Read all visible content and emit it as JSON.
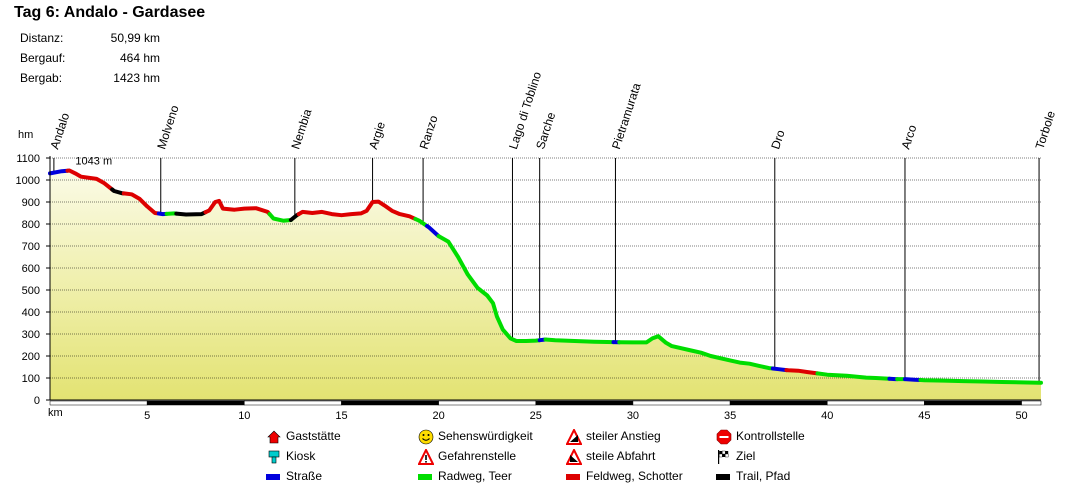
{
  "title": "Tag 6: Andalo - Gardasee",
  "stats": [
    {
      "label": "Distanz:",
      "value": "50,99 km"
    },
    {
      "label": "Bergauf:",
      "value": "464 hm"
    },
    {
      "label": "Bergab:",
      "value": "1423 hm"
    }
  ],
  "chart_data": {
    "type": "area",
    "title": "Tag 6: Andalo - Gardasee",
    "xlabel": "km",
    "ylabel": "hm",
    "xlim": [
      0,
      51
    ],
    "ylim": [
      0,
      1100
    ],
    "x_ticks": [
      0,
      5,
      10,
      15,
      20,
      25,
      30,
      35,
      40,
      45,
      50
    ],
    "y_ticks": [
      0,
      100,
      200,
      300,
      400,
      500,
      600,
      700,
      800,
      900,
      1000,
      1100
    ],
    "max_label": "1043 m",
    "max_point": {
      "km": 1.0,
      "hm": 1043
    },
    "colors": {
      "fill_top": "#fbfbe6",
      "fill_bottom": "#e3e372",
      "grid": "#000000",
      "road": "#0000dd",
      "cycle": "#00dd00",
      "field": "#dd0000",
      "trail": "#000000",
      "max": "#dd0000"
    },
    "waypoints": [
      {
        "name": "Andalo",
        "km": 0.2
      },
      {
        "name": "Molveno",
        "km": 5.7
      },
      {
        "name": "Nembia",
        "km": 12.6
      },
      {
        "name": "Argie",
        "km": 16.6
      },
      {
        "name": "Ranzo",
        "km": 19.2
      },
      {
        "name": "Lago di Toblino",
        "km": 23.8
      },
      {
        "name": "Sarche",
        "km": 25.2
      },
      {
        "name": "Pietramurata",
        "km": 29.1
      },
      {
        "name": "Dro",
        "km": 37.3
      },
      {
        "name": "Arco",
        "km": 44.0
      },
      {
        "name": "Torbole",
        "km": 50.9
      }
    ],
    "profile": [
      [
        0,
        1030
      ],
      [
        0.6,
        1040
      ],
      [
        1.0,
        1043
      ],
      [
        1.3,
        1030
      ],
      [
        1.6,
        1015
      ],
      [
        2.4,
        1005
      ],
      [
        2.8,
        985
      ],
      [
        3.3,
        950
      ],
      [
        3.7,
        940
      ],
      [
        4.2,
        935
      ],
      [
        4.6,
        915
      ],
      [
        5.0,
        880
      ],
      [
        5.4,
        850
      ],
      [
        5.8,
        845
      ],
      [
        6.4,
        848
      ],
      [
        7.0,
        843
      ],
      [
        7.8,
        845
      ],
      [
        8.2,
        862
      ],
      [
        8.5,
        900
      ],
      [
        8.7,
        905
      ],
      [
        8.9,
        870
      ],
      [
        9.5,
        865
      ],
      [
        10.0,
        870
      ],
      [
        10.6,
        872
      ],
      [
        11.2,
        855
      ],
      [
        11.5,
        825
      ],
      [
        12.0,
        815
      ],
      [
        12.4,
        818
      ],
      [
        12.7,
        840
      ],
      [
        13.0,
        855
      ],
      [
        13.5,
        850
      ],
      [
        14.0,
        855
      ],
      [
        14.5,
        845
      ],
      [
        15.0,
        840
      ],
      [
        15.5,
        845
      ],
      [
        16.0,
        848
      ],
      [
        16.3,
        860
      ],
      [
        16.6,
        900
      ],
      [
        16.9,
        902
      ],
      [
        17.2,
        885
      ],
      [
        17.6,
        860
      ],
      [
        18.0,
        845
      ],
      [
        18.5,
        835
      ],
      [
        19.0,
        815
      ],
      [
        19.5,
        785
      ],
      [
        20.0,
        745
      ],
      [
        20.5,
        720
      ],
      [
        21.0,
        650
      ],
      [
        21.5,
        570
      ],
      [
        22.0,
        510
      ],
      [
        22.5,
        475
      ],
      [
        22.8,
        440
      ],
      [
        23.0,
        380
      ],
      [
        23.3,
        320
      ],
      [
        23.7,
        280
      ],
      [
        24.0,
        268
      ],
      [
        24.5,
        268
      ],
      [
        25.0,
        270
      ],
      [
        25.5,
        275
      ],
      [
        26.0,
        272
      ],
      [
        27.0,
        268
      ],
      [
        28.0,
        265
      ],
      [
        29.0,
        263
      ],
      [
        30.0,
        262
      ],
      [
        30.7,
        262
      ],
      [
        31.0,
        280
      ],
      [
        31.3,
        290
      ],
      [
        31.7,
        260
      ],
      [
        32.0,
        245
      ],
      [
        33.0,
        225
      ],
      [
        33.5,
        215
      ],
      [
        34.0,
        200
      ],
      [
        35.0,
        180
      ],
      [
        35.5,
        170
      ],
      [
        36.0,
        165
      ],
      [
        36.5,
        155
      ],
      [
        37.0,
        145
      ],
      [
        37.5,
        140
      ],
      [
        38.0,
        135
      ],
      [
        38.5,
        133
      ],
      [
        39.0,
        127
      ],
      [
        40.0,
        115
      ],
      [
        41.0,
        110
      ],
      [
        42.0,
        102
      ],
      [
        42.5,
        100
      ],
      [
        43.5,
        95
      ],
      [
        44.0,
        95
      ],
      [
        44.5,
        92
      ],
      [
        45.0,
        90
      ],
      [
        46.0,
        88
      ],
      [
        47.0,
        86
      ],
      [
        48.0,
        84
      ],
      [
        49.0,
        82
      ],
      [
        50.0,
        80
      ],
      [
        50.9,
        78
      ]
    ],
    "segments": [
      {
        "type": "road",
        "from": 0,
        "to": 0.9
      },
      {
        "type": "field",
        "from": 0.9,
        "to": 3.2
      },
      {
        "type": "trail",
        "from": 3.2,
        "to": 3.8
      },
      {
        "type": "field",
        "from": 3.8,
        "to": 5.6
      },
      {
        "type": "road",
        "from": 5.6,
        "to": 6.0
      },
      {
        "type": "cycle",
        "from": 6.0,
        "to": 6.5
      },
      {
        "type": "trail",
        "from": 6.5,
        "to": 8.0
      },
      {
        "type": "field",
        "from": 8.0,
        "to": 11.3
      },
      {
        "type": "cycle",
        "from": 11.3,
        "to": 12.4
      },
      {
        "type": "trail",
        "from": 12.4,
        "to": 12.8
      },
      {
        "type": "field",
        "from": 12.8,
        "to": 18.8
      },
      {
        "type": "cycle",
        "from": 18.8,
        "to": 19.4
      },
      {
        "type": "road",
        "from": 19.4,
        "to": 20.0
      },
      {
        "type": "cycle",
        "from": 20.0,
        "to": 25.2
      },
      {
        "type": "road",
        "from": 25.2,
        "to": 25.5
      },
      {
        "type": "cycle",
        "from": 25.5,
        "to": 29.0
      },
      {
        "type": "road",
        "from": 29.0,
        "to": 29.3
      },
      {
        "type": "cycle",
        "from": 29.3,
        "to": 37.2
      },
      {
        "type": "road",
        "from": 37.2,
        "to": 37.9
      },
      {
        "type": "field",
        "from": 37.9,
        "to": 39.5
      },
      {
        "type": "cycle",
        "from": 39.5,
        "to": 43.2
      },
      {
        "type": "road",
        "from": 43.2,
        "to": 43.6
      },
      {
        "type": "cycle",
        "from": 43.6,
        "to": 44.0
      },
      {
        "type": "road",
        "from": 44.0,
        "to": 44.8
      },
      {
        "type": "cycle",
        "from": 44.8,
        "to": 51.0
      }
    ]
  },
  "legend": [
    {
      "label": "Gaststätte",
      "icon": "restaurant-icon",
      "color": "#ee0000"
    },
    {
      "label": "Kiosk",
      "icon": "kiosk-icon",
      "color": "#00cccc"
    },
    {
      "label": "Straße",
      "icon": "road-line-icon",
      "color": "#0000dd"
    },
    {
      "label": "Sehenswürdigkeit",
      "icon": "smiley-icon",
      "color": "#ffdd00"
    },
    {
      "label": "Gefahrenstelle",
      "icon": "warning-icon",
      "color": "#ee0000"
    },
    {
      "label": "Radweg, Teer",
      "icon": "cycle-line-icon",
      "color": "#00dd00"
    },
    {
      "label": "steiler Anstieg",
      "icon": "steep-climb-icon",
      "color": "#ee0000"
    },
    {
      "label": "steile Abfahrt",
      "icon": "steep-descent-icon",
      "color": "#ee0000"
    },
    {
      "label": "Feldweg, Schotter",
      "icon": "field-line-icon",
      "color": "#dd0000"
    },
    {
      "label": "Kontrollstelle",
      "icon": "stop-icon",
      "color": "#ee0000"
    },
    {
      "label": "Ziel",
      "icon": "finish-flag-icon",
      "color": "#000000"
    },
    {
      "label": "Trail, Pfad",
      "icon": "trail-line-icon",
      "color": "#000000"
    }
  ]
}
